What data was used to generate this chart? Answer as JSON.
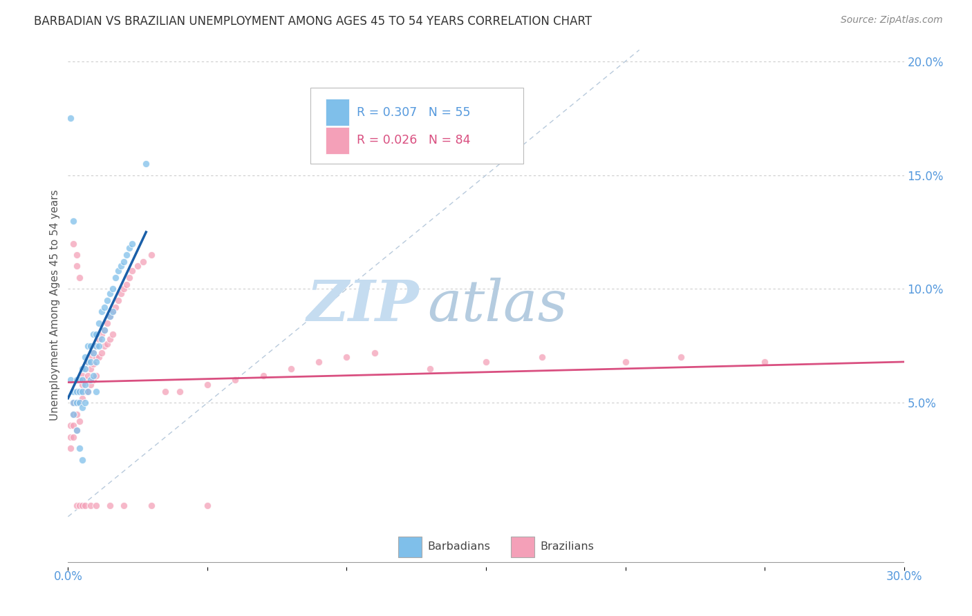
{
  "title": "BARBADIAN VS BRAZILIAN UNEMPLOYMENT AMONG AGES 45 TO 54 YEARS CORRELATION CHART",
  "source": "Source: ZipAtlas.com",
  "ylabel": "Unemployment Among Ages 45 to 54 years",
  "right_yticks": [
    "20.0%",
    "15.0%",
    "10.0%",
    "5.0%"
  ],
  "right_ytick_vals": [
    0.2,
    0.15,
    0.1,
    0.05
  ],
  "xlim": [
    0.0,
    0.3
  ],
  "ylim": [
    -0.022,
    0.208
  ],
  "barbadian_R": 0.307,
  "barbadian_N": 55,
  "brazilian_R": 0.026,
  "brazilian_N": 84,
  "barbadian_color": "#7fbfea",
  "brazilian_color": "#f4a0b8",
  "barbadian_line_color": "#1a5fa8",
  "brazilian_line_color": "#d94f80",
  "diagonal_color": "#b0c4d8",
  "watermark_zip_color": "#c8dff0",
  "watermark_atlas_color": "#b8d0e8",
  "background_color": "#ffffff",
  "title_fontsize": 12,
  "source_fontsize": 10,
  "barbadian_x": [
    0.001,
    0.002,
    0.002,
    0.002,
    0.003,
    0.003,
    0.003,
    0.004,
    0.004,
    0.004,
    0.005,
    0.005,
    0.005,
    0.005,
    0.006,
    0.006,
    0.006,
    0.006,
    0.007,
    0.007,
    0.007,
    0.008,
    0.008,
    0.008,
    0.009,
    0.009,
    0.009,
    0.01,
    0.01,
    0.01,
    0.01,
    0.011,
    0.011,
    0.012,
    0.012,
    0.013,
    0.013,
    0.014,
    0.015,
    0.015,
    0.016,
    0.016,
    0.017,
    0.018,
    0.019,
    0.02,
    0.021,
    0.022,
    0.023,
    0.001,
    0.002,
    0.003,
    0.004,
    0.005,
    0.028
  ],
  "barbadian_y": [
    0.06,
    0.055,
    0.05,
    0.045,
    0.06,
    0.055,
    0.05,
    0.06,
    0.055,
    0.05,
    0.065,
    0.06,
    0.055,
    0.048,
    0.07,
    0.065,
    0.058,
    0.05,
    0.075,
    0.068,
    0.055,
    0.075,
    0.068,
    0.06,
    0.08,
    0.072,
    0.062,
    0.08,
    0.075,
    0.068,
    0.055,
    0.085,
    0.075,
    0.09,
    0.078,
    0.092,
    0.082,
    0.095,
    0.098,
    0.088,
    0.1,
    0.09,
    0.105,
    0.108,
    0.11,
    0.112,
    0.115,
    0.118,
    0.12,
    0.175,
    0.13,
    0.038,
    0.03,
    0.025,
    0.155
  ],
  "brazilian_x": [
    0.001,
    0.001,
    0.001,
    0.002,
    0.002,
    0.002,
    0.002,
    0.003,
    0.003,
    0.003,
    0.003,
    0.004,
    0.004,
    0.004,
    0.004,
    0.005,
    0.005,
    0.005,
    0.006,
    0.006,
    0.006,
    0.007,
    0.007,
    0.007,
    0.008,
    0.008,
    0.008,
    0.009,
    0.009,
    0.009,
    0.01,
    0.01,
    0.01,
    0.011,
    0.011,
    0.012,
    0.012,
    0.013,
    0.013,
    0.014,
    0.014,
    0.015,
    0.015,
    0.016,
    0.016,
    0.017,
    0.018,
    0.019,
    0.02,
    0.021,
    0.022,
    0.023,
    0.025,
    0.027,
    0.03,
    0.035,
    0.04,
    0.05,
    0.06,
    0.07,
    0.08,
    0.09,
    0.1,
    0.11,
    0.13,
    0.15,
    0.17,
    0.2,
    0.22,
    0.25,
    0.003,
    0.004,
    0.005,
    0.006,
    0.008,
    0.01,
    0.015,
    0.02,
    0.03,
    0.05,
    0.002,
    0.003,
    0.003,
    0.004
  ],
  "brazilian_y": [
    0.04,
    0.035,
    0.03,
    0.05,
    0.045,
    0.04,
    0.035,
    0.055,
    0.05,
    0.045,
    0.038,
    0.06,
    0.055,
    0.05,
    0.042,
    0.062,
    0.058,
    0.052,
    0.065,
    0.06,
    0.055,
    0.068,
    0.062,
    0.055,
    0.07,
    0.065,
    0.058,
    0.072,
    0.067,
    0.06,
    0.075,
    0.07,
    0.062,
    0.078,
    0.07,
    0.08,
    0.072,
    0.082,
    0.075,
    0.085,
    0.076,
    0.088,
    0.078,
    0.09,
    0.08,
    0.092,
    0.095,
    0.098,
    0.1,
    0.102,
    0.105,
    0.108,
    0.11,
    0.112,
    0.115,
    0.055,
    0.055,
    0.058,
    0.06,
    0.062,
    0.065,
    0.068,
    0.07,
    0.072,
    0.065,
    0.068,
    0.07,
    0.068,
    0.07,
    0.068,
    0.005,
    0.005,
    0.005,
    0.005,
    0.005,
    0.005,
    0.005,
    0.005,
    0.005,
    0.005,
    0.12,
    0.115,
    0.11,
    0.105
  ]
}
